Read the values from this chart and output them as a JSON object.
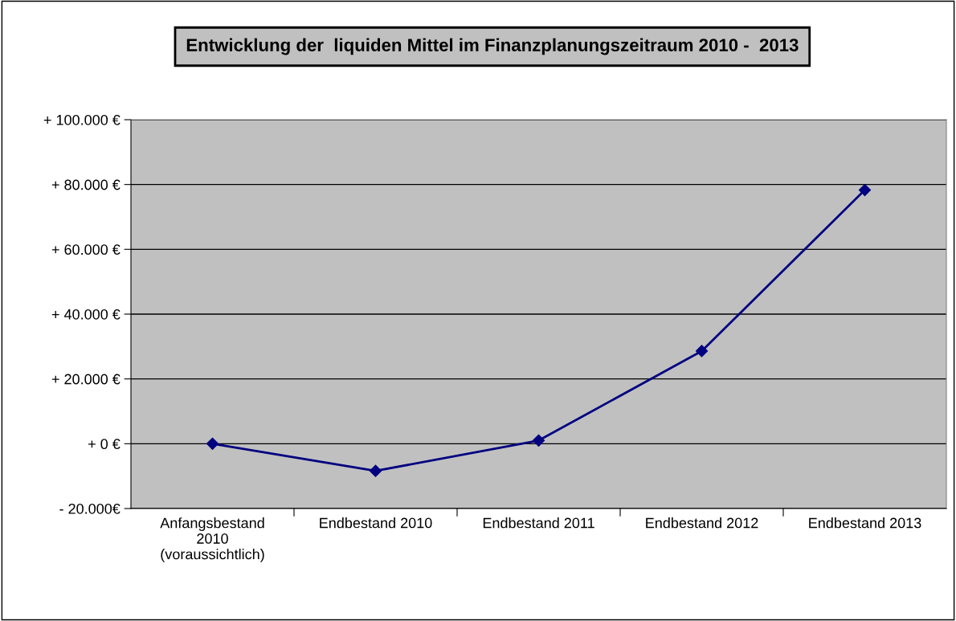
{
  "chart_data": {
    "type": "line",
    "title": "Entwicklung der  liquiden Mittel im Finanzplanungszeitraum 2010 -  2013",
    "categories": [
      "Anfangsbestand\n2010\n(voraussichtlich)",
      "Endbestand 2010",
      "Endbestand 2011",
      "Endbestand 2012",
      "Endbestand 2013"
    ],
    "series": [
      {
        "color": "#000080",
        "values": [
          0,
          -8400,
          1000,
          28600,
          78300
        ]
      }
    ],
    "ylim": [
      -20000,
      100000
    ],
    "yticks": [
      {
        "value": -20000,
        "label": "- 20.000€"
      },
      {
        "value": 0,
        "label": "+ 0 €"
      },
      {
        "value": 20000,
        "label": "+ 20.000 €"
      },
      {
        "value": 40000,
        "label": "+ 40.000 €"
      },
      {
        "value": 60000,
        "label": "+ 60.000 €"
      },
      {
        "value": 80000,
        "label": "+ 80.000 €"
      },
      {
        "value": 100000,
        "label": "+ 100.000 €"
      }
    ],
    "grid": "y",
    "marker": "diamond",
    "line_style": "solid",
    "legend": false
  }
}
